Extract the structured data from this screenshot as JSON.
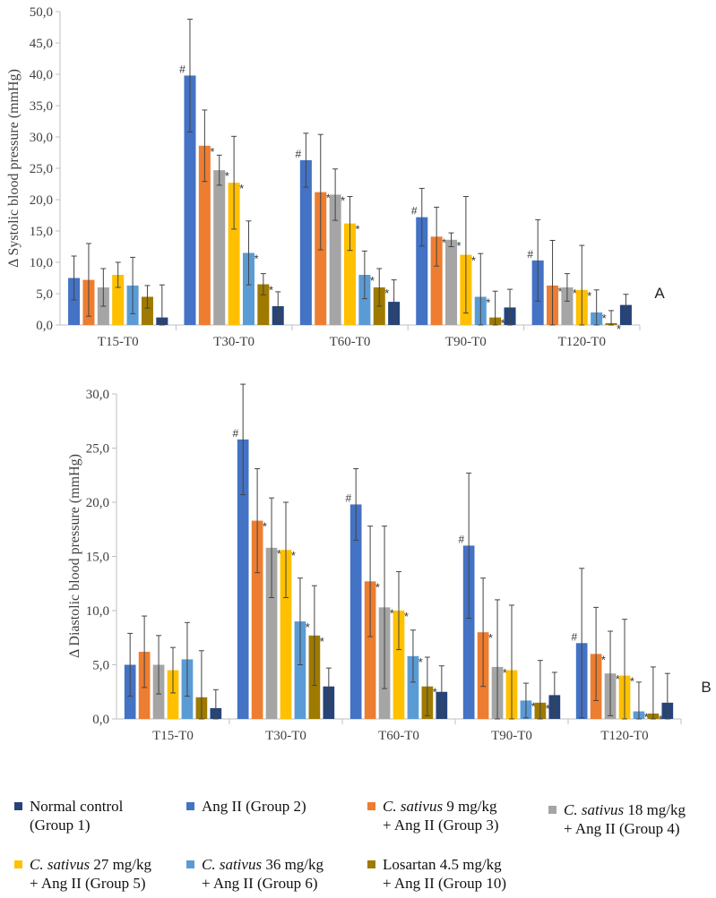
{
  "chart_data": [
    {
      "id": "A",
      "type": "bar",
      "panel_label": "A",
      "ylabel": "Δ Systolic blood pressure (mmHg)",
      "ylim": [
        0,
        50
      ],
      "yticks": [
        "0,0",
        "5,0",
        "10,0",
        "15,0",
        "20,0",
        "25,0",
        "30,0",
        "35,0",
        "40,0",
        "45,0",
        "50,0"
      ],
      "categories": [
        "T15-T0",
        "T30-T0",
        "T60-T0",
        "T90-T0",
        "T120-T0"
      ],
      "series": [
        {
          "name": "Ang II (Group 2)",
          "color": "#4472C4",
          "values": [
            7.5,
            39.8,
            26.3,
            17.2,
            10.3
          ],
          "errors": [
            3.5,
            9.0,
            4.3,
            4.6,
            6.5
          ],
          "marks": [
            "",
            "#",
            "#",
            "#",
            "#"
          ]
        },
        {
          "name": "C. sativus 9 mg/kg + Ang II (Group 3)",
          "color": "#ED7D31",
          "values": [
            7.2,
            28.6,
            21.2,
            14.1,
            6.3
          ],
          "errors": [
            5.8,
            5.7,
            9.2,
            4.7,
            7.2
          ],
          "marks": [
            "",
            "*",
            "*",
            "*",
            "*"
          ]
        },
        {
          "name": "C. sativus 18 mg/kg + Ang II (Group 4)",
          "color": "#A5A5A5",
          "values": [
            6.0,
            24.7,
            20.8,
            13.6,
            6.0
          ],
          "errors": [
            3.0,
            2.4,
            4.1,
            1.1,
            2.2
          ],
          "marks": [
            "",
            "*",
            "*",
            "*",
            "*"
          ]
        },
        {
          "name": "C. sativus 27 mg/kg + Ang II (Group 5)",
          "color": "#FFC000",
          "values": [
            8.0,
            22.7,
            16.2,
            11.2,
            5.6
          ],
          "errors": [
            2.0,
            7.4,
            4.3,
            9.3,
            7.1
          ],
          "marks": [
            "",
            "*",
            "*",
            "*",
            "*"
          ]
        },
        {
          "name": "C. sativus 36 mg/kg + Ang II (Group 6)",
          "color": "#5B9BD5",
          "values": [
            6.3,
            11.5,
            8.0,
            4.5,
            2.0
          ],
          "errors": [
            4.5,
            5.1,
            3.8,
            6.9,
            3.6
          ],
          "marks": [
            "",
            "*",
            "*",
            "*",
            "*"
          ]
        },
        {
          "name": "Losartan 4.5 mg/kg + Ang II (Group 10)",
          "color": "#9E7A00",
          "values": [
            4.5,
            6.5,
            6.0,
            1.2,
            0.3
          ],
          "errors": [
            1.8,
            1.7,
            3.0,
            4.2,
            2.0
          ],
          "marks": [
            "",
            "*",
            "*",
            "*",
            "*"
          ]
        },
        {
          "name": "Normal control (Group 1)",
          "color": "#264478",
          "values": [
            1.2,
            3.0,
            3.7,
            2.8,
            3.2
          ],
          "errors": [
            5.2,
            2.3,
            3.5,
            2.9,
            1.7
          ],
          "marks": [
            "",
            "",
            "",
            "",
            ""
          ]
        }
      ]
    },
    {
      "id": "B",
      "type": "bar",
      "panel_label": "B",
      "ylabel": "Δ Diastolic blood pressure (mmHg)",
      "ylim": [
        0,
        30
      ],
      "yticks": [
        "0,0",
        "5,0",
        "10,0",
        "15,0",
        "20,0",
        "25,0",
        "30,0"
      ],
      "categories": [
        "T15-T0",
        "T30-T0",
        "T60-T0",
        "T90-T0",
        "T120-T0"
      ],
      "series": [
        {
          "name": "Ang II (Group 2)",
          "color": "#4472C4",
          "values": [
            5.0,
            25.8,
            19.8,
            16.0,
            7.0
          ],
          "errors": [
            2.9,
            5.1,
            3.3,
            6.7,
            6.9
          ],
          "marks": [
            "",
            "#",
            "#",
            "#",
            "#"
          ]
        },
        {
          "name": "C. sativus 9 mg/kg + Ang II (Group 3)",
          "color": "#ED7D31",
          "values": [
            6.2,
            18.3,
            12.7,
            8.0,
            6.0
          ],
          "errors": [
            3.3,
            4.8,
            5.1,
            5.0,
            4.3
          ],
          "marks": [
            "",
            "*",
            "*",
            "*",
            "*"
          ]
        },
        {
          "name": "C. sativus 18 mg/kg + Ang II (Group 4)",
          "color": "#A5A5A5",
          "values": [
            5.0,
            15.8,
            10.3,
            4.8,
            4.2
          ],
          "errors": [
            2.7,
            4.6,
            7.5,
            6.2,
            3.9
          ],
          "marks": [
            "",
            "*",
            "*",
            "*",
            "*"
          ]
        },
        {
          "name": "C. sativus 27 mg/kg + Ang II (Group 5)",
          "color": "#FFC000",
          "values": [
            4.5,
            15.6,
            10.0,
            4.5,
            4.0
          ],
          "errors": [
            2.1,
            4.4,
            3.6,
            6.0,
            5.2
          ],
          "marks": [
            "",
            "*",
            "*",
            "",
            "*"
          ]
        },
        {
          "name": "C. sativus 36 mg/kg + Ang II (Group 6)",
          "color": "#5B9BD5",
          "values": [
            5.5,
            9.0,
            5.8,
            1.7,
            0.7
          ],
          "errors": [
            3.4,
            4.0,
            2.4,
            1.6,
            2.7
          ],
          "marks": [
            "",
            "*",
            "*",
            "*",
            "*"
          ]
        },
        {
          "name": "Losartan 4.5 mg/kg + Ang II (Group 10)",
          "color": "#9E7A00",
          "values": [
            2.0,
            7.7,
            3.0,
            1.5,
            0.5
          ],
          "errors": [
            4.3,
            4.6,
            2.7,
            3.9,
            4.3
          ],
          "marks": [
            "",
            "*",
            "*",
            "*",
            "*"
          ]
        },
        {
          "name": "Normal control (Group 1)",
          "color": "#264478",
          "values": [
            1.0,
            3.0,
            2.5,
            2.2,
            1.5
          ],
          "errors": [
            1.7,
            1.7,
            2.4,
            2.1,
            2.7
          ],
          "marks": [
            "",
            "",
            "",
            "",
            ""
          ]
        }
      ]
    }
  ],
  "legend": [
    {
      "color": "#264478",
      "italic": "",
      "text": "Normal control\n(Group 1)"
    },
    {
      "color": "#4472C4",
      "italic": "",
      "text": "Ang II (Group 2)"
    },
    {
      "color": "#ED7D31",
      "italic": "C. sativus",
      "text": " 9 mg/kg\n+ Ang II (Group 3)"
    },
    {
      "color": "#A5A5A5",
      "italic": "C. sativus",
      "text": " 18 mg/kg\n+ Ang II (Group 4)"
    },
    {
      "color": "#FFC000",
      "italic": "C. sativus",
      "text": " 27 mg/kg\n+ Ang II (Group 5)"
    },
    {
      "color": "#5B9BD5",
      "italic": "C. sativus",
      "text": " 36 mg/kg\n+ Ang II (Group 6)"
    },
    {
      "color": "#9E7A00",
      "italic": "",
      "text": "Losartan 4.5 mg/kg\n+ Ang II (Group 10)"
    }
  ]
}
